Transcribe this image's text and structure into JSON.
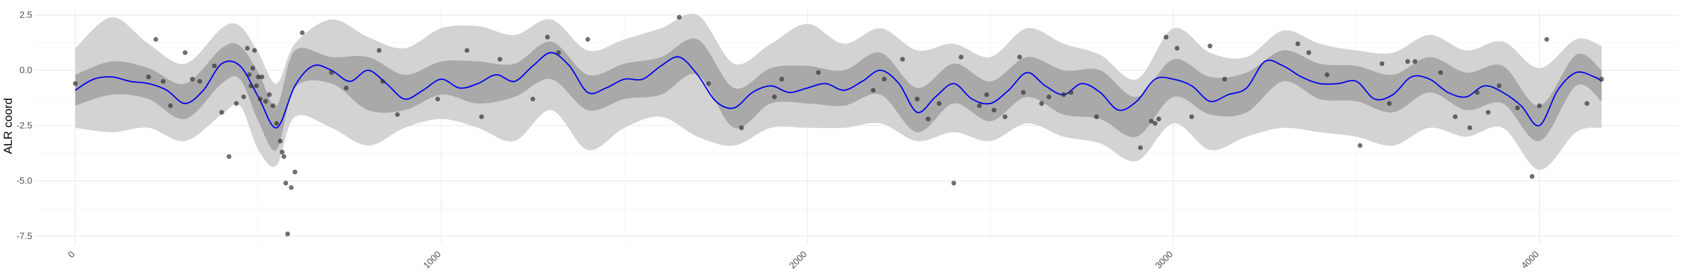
{
  "chart_data": {
    "type": "line",
    "title": "",
    "xlabel": "",
    "ylabel": "ALR coord",
    "xlim": [
      -110,
      4380
    ],
    "ylim": [
      -7.9,
      2.8
    ],
    "x_ticks": [
      0,
      1000,
      2000,
      3000,
      4000
    ],
    "x_tick_labels": [
      "0",
      "1000",
      "2000",
      "3000",
      "4000"
    ],
    "y_ticks": [
      2.5,
      0,
      -2.5,
      -5,
      -7.5
    ],
    "y_tick_labels": [
      "2.5",
      "0.0",
      "-2.5",
      "-5.0",
      "-7.5"
    ],
    "grid": true,
    "legend": "none",
    "colors": {
      "mean_line": "#0000ee",
      "inner_band": "#a9a9a9",
      "outer_band": "#d3d3d3",
      "points": "#333333",
      "grid_major": "#ebebeb",
      "grid_minor": "#f5f5f5"
    },
    "series": [
      {
        "kind": "outer_band",
        "x": [
          0,
          100,
          200,
          300,
          400,
          450,
          500,
          550,
          600,
          700,
          800,
          900,
          1000,
          1100,
          1200,
          1300,
          1400,
          1500,
          1600,
          1700,
          1800,
          1900,
          2000,
          2100,
          2200,
          2300,
          2400,
          2500,
          2600,
          2700,
          2800,
          2900,
          3000,
          3100,
          3200,
          3300,
          3400,
          3500,
          3600,
          3700,
          3800,
          3900,
          4000,
          4100,
          4170
        ],
        "upper": [
          1.0,
          2.4,
          1.2,
          0.3,
          1.9,
          2.0,
          0.8,
          -0.6,
          1.2,
          2.3,
          1.5,
          1.0,
          1.9,
          2.0,
          1.6,
          2.3,
          0.9,
          1.4,
          1.9,
          2.5,
          0.3,
          1.2,
          2.1,
          1.2,
          1.9,
          0.9,
          1.2,
          0.6,
          1.9,
          1.2,
          0.7,
          -0.4,
          1.9,
          0.8,
          0.6,
          1.8,
          1.2,
          0.9,
          0.8,
          1.6,
          0.9,
          1.3,
          0.1,
          1.4,
          1.1
        ],
        "lower": [
          -2.6,
          -2.8,
          -2.6,
          -3.2,
          -2.0,
          -1.6,
          -3.6,
          -4.3,
          -2.1,
          -2.6,
          -3.4,
          -2.6,
          -2.2,
          -2.6,
          -3.2,
          -1.8,
          -3.6,
          -2.6,
          -2.1,
          -3.0,
          -3.4,
          -2.6,
          -2.6,
          -2.6,
          -2.4,
          -3.2,
          -2.8,
          -3.2,
          -2.4,
          -3.0,
          -3.3,
          -4.1,
          -2.4,
          -3.6,
          -3.0,
          -2.6,
          -2.8,
          -3.0,
          -3.4,
          -2.6,
          -3.0,
          -2.6,
          -4.5,
          -2.8,
          -2.6
        ]
      },
      {
        "kind": "inner_band",
        "x": [
          0,
          100,
          200,
          300,
          400,
          450,
          500,
          550,
          600,
          700,
          800,
          900,
          1000,
          1100,
          1200,
          1300,
          1400,
          1500,
          1600,
          1700,
          1800,
          1900,
          2000,
          2100,
          2200,
          2300,
          2400,
          2500,
          2600,
          2700,
          2800,
          2900,
          3000,
          3100,
          3200,
          3300,
          3400,
          3500,
          3600,
          3700,
          3800,
          3900,
          4000,
          4100,
          4170
        ],
        "upper": [
          -0.2,
          0.4,
          0.1,
          -0.6,
          1.0,
          1.1,
          -0.1,
          -1.6,
          0.9,
          0.6,
          0.6,
          -0.2,
          0.4,
          0.4,
          0.3,
          1.3,
          -0.2,
          0.3,
          0.6,
          1.4,
          -0.8,
          0.1,
          0.2,
          0.0,
          0.8,
          -0.8,
          0.3,
          -0.5,
          0.6,
          0.0,
          0.0,
          -1.2,
          0.5,
          -0.3,
          -0.1,
          0.9,
          0.3,
          0.2,
          -0.2,
          0.6,
          -0.1,
          0.2,
          -1.6,
          0.7,
          0.0
        ],
        "lower": [
          -1.6,
          -1.1,
          -1.3,
          -2.2,
          -0.6,
          -0.4,
          -2.3,
          -3.6,
          -0.8,
          -0.6,
          -1.8,
          -1.8,
          -1.1,
          -1.5,
          -1.2,
          -0.4,
          -1.8,
          -1.3,
          -1.1,
          -0.2,
          -2.6,
          -1.5,
          -1.5,
          -1.6,
          -1.1,
          -2.8,
          -1.5,
          -2.3,
          -1.2,
          -2.0,
          -2.2,
          -3.0,
          -1.2,
          -2.0,
          -1.9,
          -0.5,
          -1.3,
          -1.4,
          -1.9,
          -1.0,
          -1.8,
          -1.5,
          -3.2,
          -0.7,
          -1.4
        ]
      },
      {
        "kind": "mean_line",
        "x": [
          0,
          50,
          100,
          150,
          200,
          250,
          300,
          350,
          400,
          450,
          500,
          550,
          600,
          650,
          700,
          750,
          800,
          850,
          900,
          950,
          1000,
          1050,
          1100,
          1150,
          1200,
          1250,
          1300,
          1350,
          1400,
          1450,
          1500,
          1550,
          1600,
          1650,
          1700,
          1750,
          1800,
          1850,
          1900,
          1950,
          2000,
          2050,
          2100,
          2150,
          2200,
          2250,
          2300,
          2350,
          2400,
          2450,
          2500,
          2550,
          2600,
          2650,
          2700,
          2750,
          2800,
          2850,
          2900,
          2950,
          3000,
          3050,
          3100,
          3150,
          3200,
          3250,
          3300,
          3350,
          3400,
          3450,
          3500,
          3550,
          3600,
          3650,
          3700,
          3750,
          3800,
          3850,
          3900,
          3950,
          4000,
          4050,
          4100,
          4150,
          4170
        ],
        "y": [
          -0.9,
          -0.4,
          -0.3,
          -0.5,
          -0.6,
          -0.9,
          -1.5,
          -0.9,
          0.3,
          0.2,
          -1.2,
          -2.6,
          -0.7,
          0.2,
          0.0,
          -0.5,
          0.0,
          -0.6,
          -1.3,
          -0.9,
          -0.4,
          -0.8,
          -0.6,
          -0.2,
          -0.5,
          0.2,
          0.8,
          0.2,
          -1.0,
          -0.8,
          -0.4,
          -0.4,
          0.2,
          0.6,
          -0.2,
          -1.4,
          -1.7,
          -1.0,
          -0.7,
          -1.0,
          -0.8,
          -0.6,
          -0.9,
          -0.5,
          0.0,
          -0.6,
          -1.9,
          -1.2,
          -0.6,
          -1.3,
          -1.5,
          -0.9,
          -0.1,
          -0.7,
          -1.1,
          -0.6,
          -1.0,
          -1.8,
          -1.4,
          -0.4,
          -0.4,
          -0.7,
          -1.4,
          -1.1,
          -0.8,
          0.4,
          0.2,
          -0.3,
          -0.6,
          -0.6,
          -0.5,
          -1.3,
          -1.1,
          -0.3,
          -0.4,
          -1.0,
          -1.2,
          -0.7,
          -1.0,
          -1.6,
          -2.5,
          -0.9,
          -0.1,
          -0.3,
          -0.5
        ]
      },
      {
        "kind": "points",
        "x": [
          0,
          200,
          220,
          240,
          260,
          300,
          320,
          340,
          380,
          400,
          420,
          440,
          460,
          470,
          475,
          480,
          485,
          490,
          495,
          500,
          505,
          510,
          520,
          530,
          540,
          550,
          560,
          565,
          570,
          575,
          580,
          590,
          600,
          620,
          700,
          740,
          830,
          840,
          880,
          990,
          1070,
          1110,
          1160,
          1250,
          1290,
          1320,
          1400,
          1650,
          1730,
          1820,
          1910,
          1930,
          2030,
          2180,
          2210,
          2260,
          2300,
          2330,
          2360,
          2400,
          2420,
          2470,
          2490,
          2510,
          2540,
          2580,
          2590,
          2640,
          2660,
          2700,
          2720,
          2790,
          2910,
          2940,
          2950,
          2960,
          2980,
          3010,
          3050,
          3100,
          3140,
          3340,
          3370,
          3420,
          3510,
          3570,
          3590,
          3640,
          3660,
          3730,
          3770,
          3810,
          3830,
          3860,
          3890,
          3940,
          3980,
          4000,
          4020,
          4130,
          4170
        ],
        "y": [
          -0.6,
          -0.3,
          1.4,
          -0.5,
          -1.6,
          0.8,
          -0.4,
          -0.5,
          0.2,
          -1.9,
          -3.9,
          -1.5,
          -1.2,
          1.0,
          -0.2,
          -0.7,
          0.1,
          0.9,
          -0.7,
          -0.3,
          -1.3,
          -0.3,
          -1.4,
          -1.1,
          -1.6,
          -2.4,
          -3.2,
          -3.7,
          -3.9,
          -5.1,
          -7.4,
          -5.3,
          -4.6,
          1.7,
          -0.1,
          -0.8,
          0.9,
          -0.5,
          -2.0,
          -1.3,
          0.9,
          -2.1,
          0.5,
          -1.3,
          1.5,
          0.8,
          1.4,
          2.4,
          -0.6,
          -2.6,
          -1.2,
          -0.4,
          -0.1,
          -0.9,
          -0.4,
          0.5,
          -1.3,
          -2.2,
          -1.5,
          -5.1,
          0.6,
          -1.6,
          -1.1,
          -1.8,
          -2.1,
          0.6,
          -1.0,
          -1.5,
          -1.2,
          -1.1,
          -1.0,
          -2.1,
          -3.5,
          -2.3,
          -2.4,
          -2.2,
          1.5,
          1.0,
          -2.1,
          1.1,
          -0.4,
          1.2,
          0.8,
          -0.2,
          -3.4,
          0.3,
          -1.5,
          0.4,
          0.4,
          -0.1,
          -2.1,
          -2.6,
          -1.0,
          -1.9,
          -0.7,
          -1.7,
          -4.8,
          -1.6,
          1.4,
          -1.5,
          -0.4
        ]
      }
    ]
  }
}
